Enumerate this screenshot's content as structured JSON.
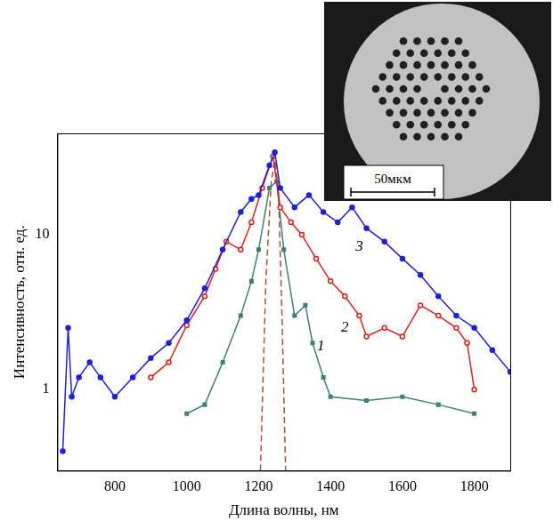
{
  "chart_data": {
    "type": "line",
    "x_label": "Длина волны, нм",
    "y_label": "Интенсивность, отн. ед.",
    "log": "y",
    "grid": false,
    "xlim": [
      640,
      1900
    ],
    "xticks": [
      800,
      1000,
      1200,
      1400,
      1600,
      1800
    ],
    "ylim": [
      0.3,
      45
    ],
    "yticks": [
      1,
      10
    ],
    "series": [
      {
        "color": "#1f1fe0",
        "marker": "circle",
        "line_style": "solid",
        "x": [
          655,
          670,
          680,
          700,
          730,
          760,
          800,
          850,
          900,
          950,
          1000,
          1050,
          1100,
          1150,
          1180,
          1200,
          1230,
          1245,
          1260,
          1300,
          1340,
          1380,
          1420,
          1460,
          1500,
          1550,
          1600,
          1650,
          1700,
          1750,
          1800,
          1850,
          1900
        ],
        "values": [
          0.4,
          2.5,
          0.9,
          1.2,
          1.5,
          1.2,
          0.9,
          1.2,
          1.6,
          2.0,
          2.8,
          4.5,
          8,
          14,
          17,
          18,
          28,
          34,
          20,
          15,
          18,
          14,
          12,
          15,
          11,
          9,
          7,
          5.5,
          4,
          3,
          2.5,
          1.8,
          1.3
        ]
      },
      {
        "color": "#e0201a",
        "marker": "open_circle",
        "line_style": "solid",
        "x": [
          900,
          950,
          1000,
          1050,
          1080,
          1110,
          1150,
          1180,
          1210,
          1240,
          1260,
          1290,
          1320,
          1360,
          1400,
          1440,
          1480,
          1500,
          1550,
          1600,
          1650,
          1700,
          1750,
          1780,
          1800
        ],
        "values": [
          1.2,
          1.5,
          2.6,
          4,
          6,
          9,
          8,
          12,
          20,
          32,
          15,
          12,
          10,
          7,
          5,
          4,
          3,
          2.2,
          2.5,
          2.2,
          3.5,
          3.0,
          2.5,
          2.0,
          1.0
        ]
      },
      {
        "color": "#3f7f74",
        "marker": "square",
        "line_style": "solid",
        "x": [
          1000,
          1050,
          1100,
          1150,
          1180,
          1200,
          1230,
          1250,
          1270,
          1300,
          1330,
          1350,
          1380,
          1400,
          1500,
          1600,
          1700,
          1800
        ],
        "values": [
          0.7,
          0.8,
          1.5,
          3,
          5,
          8,
          20,
          22,
          8,
          3,
          3.5,
          2,
          1.2,
          0.9,
          0.85,
          0.9,
          0.8,
          0.7
        ]
      },
      {
        "color": "#a8503a",
        "marker": "none",
        "line_style": "dashed",
        "x": [
          1205,
          1220,
          1235,
          1245,
          1255,
          1265,
          1275
        ],
        "values": [
          0.3,
          5,
          22,
          30,
          20,
          3,
          0.3
        ]
      }
    ],
    "annotations": [
      {
        "x": 1480,
        "y": 8.4,
        "text": "3"
      },
      {
        "x": 1440,
        "y": 2.5,
        "text": "2"
      },
      {
        "x": 1373,
        "y": 1.9,
        "text": "1"
      }
    ],
    "inset": {
      "scale_bar": "50мкм"
    }
  }
}
